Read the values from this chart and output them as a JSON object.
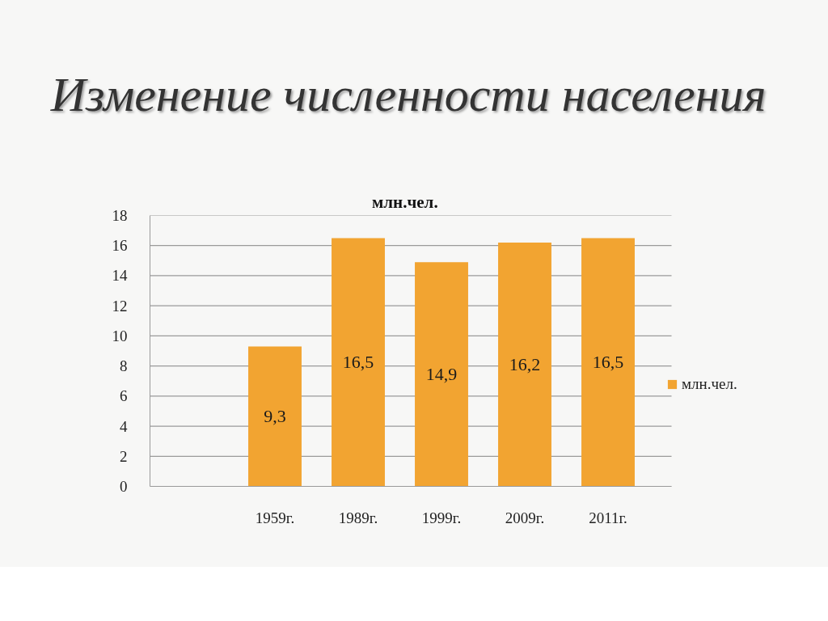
{
  "chart_data": {
    "type": "bar",
    "title": "Изменение численности населения",
    "subtitle": "млн.чел.",
    "categories": [
      "1959г.",
      "1989г.",
      "1999г.",
      "2009г.",
      "2011г."
    ],
    "series": [
      {
        "name": "млн.чел.",
        "color": "#f2a431",
        "values": [
          9.3,
          16.5,
          14.9,
          16.2,
          16.5
        ],
        "value_labels": [
          "9,3",
          "16,5",
          "14,9",
          "16,2",
          "16,5"
        ]
      }
    ],
    "ylim": [
      0,
      18
    ],
    "yticks": [
      0,
      2,
      4,
      6,
      8,
      10,
      12,
      14,
      16,
      18
    ],
    "grid": "y",
    "legend": "right"
  }
}
